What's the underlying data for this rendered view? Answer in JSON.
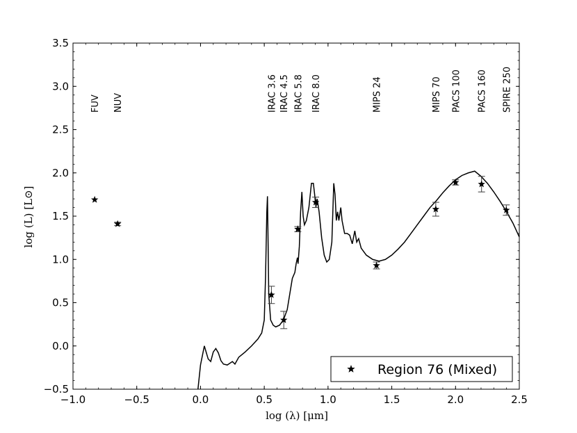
{
  "chart_data": {
    "type": "scatter",
    "title": "",
    "xlabel": "log (λ) [μm]",
    "ylabel": "log (L) [L⊙]",
    "xlim": [
      -1.0,
      2.5
    ],
    "ylim": [
      -0.5,
      3.5
    ],
    "x_ticks": [
      -1.0,
      -0.5,
      0.0,
      0.5,
      1.0,
      1.5,
      2.0,
      2.5
    ],
    "x_tick_labels": [
      "−1.0",
      "−0.5",
      "0.0",
      "0.5",
      "1.0",
      "1.5",
      "2.0",
      "2.5"
    ],
    "y_ticks": [
      -0.5,
      0.0,
      0.5,
      1.0,
      1.5,
      2.0,
      2.5,
      3.0,
      3.5
    ],
    "y_tick_labels": [
      "−0.5",
      "0.0",
      "0.5",
      "1.0",
      "1.5",
      "2.0",
      "2.5",
      "3.0",
      "3.5"
    ],
    "legend": {
      "position": "bottom-right",
      "entries": [
        "Region 76 (Mixed)"
      ]
    },
    "band_labels": [
      {
        "text": "FUV",
        "x": -0.83
      },
      {
        "text": "NUV",
        "x": -0.65
      },
      {
        "text": "IRAC 3.6",
        "x": 0.556
      },
      {
        "text": "IRAC 4.5",
        "x": 0.653
      },
      {
        "text": "IRAC 5.8",
        "x": 0.763
      },
      {
        "text": "IRAC 8.0",
        "x": 0.903
      },
      {
        "text": "MIPS 24",
        "x": 1.38
      },
      {
        "text": "MIPS 70",
        "x": 1.845
      },
      {
        "text": "PACS 100",
        "x": 2.0
      },
      {
        "text": "PACS 160",
        "x": 2.204
      },
      {
        "text": "SPIRE 250",
        "x": 2.398
      }
    ],
    "series": [
      {
        "name": "Region 76 (Mixed)",
        "type": "scatter",
        "marker": "star",
        "points": [
          {
            "x": -0.83,
            "y": 1.69,
            "err": 0.0
          },
          {
            "x": -0.65,
            "y": 1.41,
            "err": 0.02
          },
          {
            "x": 0.556,
            "y": 0.59,
            "err": 0.1
          },
          {
            "x": 0.653,
            "y": 0.3,
            "err": 0.1
          },
          {
            "x": 0.763,
            "y": 1.35,
            "err": 0.03
          },
          {
            "x": 0.903,
            "y": 1.66,
            "err": 0.06
          },
          {
            "x": 1.38,
            "y": 0.93,
            "err": 0.04
          },
          {
            "x": 1.845,
            "y": 1.58,
            "err": 0.08
          },
          {
            "x": 2.0,
            "y": 1.89,
            "err": 0.03
          },
          {
            "x": 2.204,
            "y": 1.87,
            "err": 0.09
          },
          {
            "x": 2.398,
            "y": 1.57,
            "err": 0.06
          }
        ]
      },
      {
        "type": "line",
        "points": [
          [
            -0.02,
            -0.5
          ],
          [
            0.0,
            -0.22
          ],
          [
            0.03,
            0.0
          ],
          [
            0.06,
            -0.15
          ],
          [
            0.08,
            -0.18
          ],
          [
            0.1,
            -0.07
          ],
          [
            0.12,
            -0.03
          ],
          [
            0.14,
            -0.08
          ],
          [
            0.16,
            -0.17
          ],
          [
            0.18,
            -0.21
          ],
          [
            0.21,
            -0.22
          ],
          [
            0.25,
            -0.18
          ],
          [
            0.27,
            -0.21
          ],
          [
            0.3,
            -0.13
          ],
          [
            0.35,
            -0.07
          ],
          [
            0.4,
            0.0
          ],
          [
            0.45,
            0.08
          ],
          [
            0.48,
            0.15
          ],
          [
            0.5,
            0.3
          ],
          [
            0.51,
            0.8
          ],
          [
            0.52,
            1.55
          ],
          [
            0.525,
            1.73
          ],
          [
            0.53,
            1.2
          ],
          [
            0.535,
            0.6
          ],
          [
            0.55,
            0.3
          ],
          [
            0.57,
            0.24
          ],
          [
            0.59,
            0.22
          ],
          [
            0.62,
            0.24
          ],
          [
            0.65,
            0.3
          ],
          [
            0.68,
            0.42
          ],
          [
            0.7,
            0.6
          ],
          [
            0.72,
            0.78
          ],
          [
            0.74,
            0.85
          ],
          [
            0.75,
            0.95
          ],
          [
            0.76,
            1.02
          ],
          [
            0.765,
            0.95
          ],
          [
            0.775,
            1.15
          ],
          [
            0.785,
            1.55
          ],
          [
            0.795,
            1.78
          ],
          [
            0.805,
            1.5
          ],
          [
            0.815,
            1.4
          ],
          [
            0.83,
            1.45
          ],
          [
            0.85,
            1.6
          ],
          [
            0.87,
            1.88
          ],
          [
            0.885,
            1.88
          ],
          [
            0.895,
            1.75
          ],
          [
            0.905,
            1.6
          ],
          [
            0.915,
            1.7
          ],
          [
            0.93,
            1.55
          ],
          [
            0.95,
            1.25
          ],
          [
            0.97,
            1.05
          ],
          [
            0.99,
            0.97
          ],
          [
            1.01,
            1.0
          ],
          [
            1.03,
            1.2
          ],
          [
            1.045,
            1.88
          ],
          [
            1.055,
            1.75
          ],
          [
            1.065,
            1.45
          ],
          [
            1.075,
            1.55
          ],
          [
            1.085,
            1.45
          ],
          [
            1.1,
            1.6
          ],
          [
            1.11,
            1.45
          ],
          [
            1.13,
            1.3
          ],
          [
            1.15,
            1.3
          ],
          [
            1.17,
            1.28
          ],
          [
            1.19,
            1.18
          ],
          [
            1.21,
            1.33
          ],
          [
            1.225,
            1.2
          ],
          [
            1.24,
            1.24
          ],
          [
            1.26,
            1.13
          ],
          [
            1.3,
            1.05
          ],
          [
            1.35,
            1.0
          ],
          [
            1.4,
            0.98
          ],
          [
            1.45,
            1.0
          ],
          [
            1.5,
            1.05
          ],
          [
            1.55,
            1.12
          ],
          [
            1.6,
            1.2
          ],
          [
            1.65,
            1.3
          ],
          [
            1.7,
            1.4
          ],
          [
            1.75,
            1.5
          ],
          [
            1.8,
            1.6
          ],
          [
            1.85,
            1.68
          ],
          [
            1.9,
            1.77
          ],
          [
            1.95,
            1.85
          ],
          [
            2.0,
            1.92
          ],
          [
            2.05,
            1.97
          ],
          [
            2.1,
            2.0
          ],
          [
            2.15,
            2.02
          ],
          [
            2.2,
            1.96
          ],
          [
            2.25,
            1.88
          ],
          [
            2.3,
            1.78
          ],
          [
            2.35,
            1.67
          ],
          [
            2.4,
            1.55
          ],
          [
            2.45,
            1.42
          ],
          [
            2.5,
            1.26
          ]
        ]
      }
    ],
    "colors": {
      "line": "#000000",
      "marker": "#000000",
      "errorbar": "#3a3a3a"
    }
  }
}
